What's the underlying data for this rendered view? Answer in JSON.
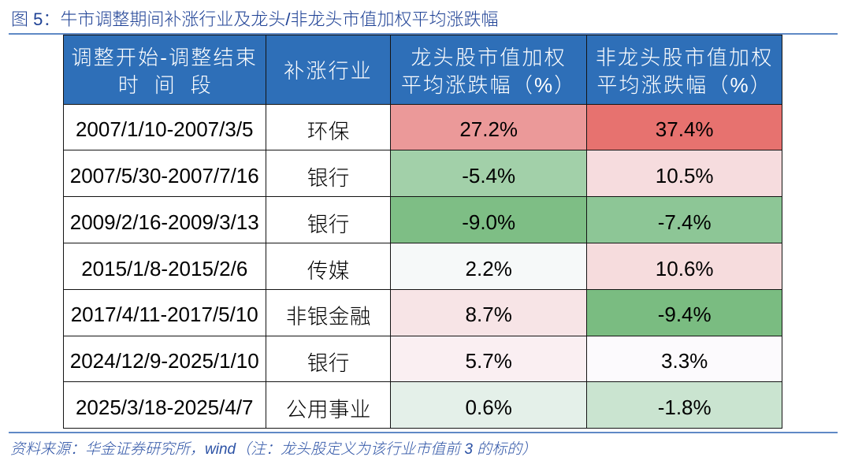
{
  "figure": {
    "label": "图 5：",
    "title": "牛市调整期间补涨行业及龙头/非龙头市值加权平均涨跌幅"
  },
  "table": {
    "columns": [
      {
        "line1": "调整开始-调整结束",
        "line2": "时间段"
      },
      {
        "line1": "补涨行业",
        "line2": ""
      },
      {
        "line1": "龙头股市值加权",
        "line2": "平均涨跌幅（%）"
      },
      {
        "line1": "非龙头股市值加权",
        "line2": "平均涨跌幅（%）"
      }
    ],
    "rows": [
      {
        "period": "2007/1/10-2007/3/5",
        "industry": "环保",
        "leader": "27.2%",
        "non_leader": "37.4%",
        "leader_bg": "#EB9999",
        "non_leader_bg": "#E7726F"
      },
      {
        "period": "2007/5/30-2007/7/16",
        "industry": "银行",
        "leader": "-5.4%",
        "non_leader": "10.5%",
        "leader_bg": "#A2D0A9",
        "non_leader_bg": "#F6DCDE"
      },
      {
        "period": "2009/2/16-2009/3/13",
        "industry": "银行",
        "leader": "-9.0%",
        "non_leader": "-7.4%",
        "leader_bg": "#7EBE85",
        "non_leader_bg": "#8DC696"
      },
      {
        "period": "2015/1/8-2015/2/6",
        "industry": "传媒",
        "leader": "2.2%",
        "non_leader": "10.6%",
        "leader_bg": "#F6F9F9",
        "non_leader_bg": "#F6DCDD"
      },
      {
        "period": "2017/4/11-2017/5/10",
        "industry": "非银金融",
        "leader": "8.7%",
        "non_leader": "-9.4%",
        "leader_bg": "#F7E4E6",
        "non_leader_bg": "#7ABC81"
      },
      {
        "period": "2024/12/9-2025/1/10",
        "industry": "银行",
        "leader": "5.7%",
        "non_leader": "3.3%",
        "leader_bg": "#FAEFF2",
        "non_leader_bg": "#FCFAFD"
      },
      {
        "period": "2025/3/18-2025/4/7",
        "industry": "公用事业",
        "leader": "0.6%",
        "non_leader": "-1.8%",
        "leader_bg": "#E4F0E9",
        "non_leader_bg": "#CAE4D0"
      }
    ]
  },
  "footer": {
    "source_note": "资料来源：华金证券研究所，wind（注：龙头股定义为该行业市值前 3 的标的）"
  },
  "colors": {
    "header_bg": "#2E6FB8",
    "title_text": "#1E4195",
    "footer_text": "#2C52A5",
    "rule_blue": "#5F89C5",
    "table_border": "#141414",
    "value_text": "#000000",
    "gain_max_bg": "#E7726F",
    "loss_min_bg": "#7ABC81"
  },
  "chart_data": {
    "type": "table",
    "title": "牛市调整期间补涨行业及龙头/非龙头市值加权平均涨跌幅",
    "columns": [
      "调整开始-调整结束时间段",
      "补涨行业",
      "龙头股市值加权平均涨跌幅（%）",
      "非龙头股市值加权平均涨跌幅（%）"
    ],
    "rows": [
      [
        "2007/1/10-2007/3/5",
        "环保",
        27.2,
        37.4
      ],
      [
        "2007/5/30-2007/7/16",
        "银行",
        -5.4,
        10.5
      ],
      [
        "2009/2/16-2009/3/13",
        "银行",
        -9.0,
        -7.4
      ],
      [
        "2015/1/8-2015/2/6",
        "传媒",
        2.2,
        10.6
      ],
      [
        "2017/4/11-2017/5/10",
        "非银金融",
        8.7,
        -9.4
      ],
      [
        "2024/12/9-2025/1/10",
        "银行",
        5.7,
        3.3
      ],
      [
        "2025/3/18-2025/4/7",
        "公用事业",
        0.6,
        -1.8
      ]
    ],
    "conditional_formatting": "red-white-green color scale (red = gain, green = loss)",
    "source": "资料来源：华金证券研究所，wind（注：龙头股定义为该行业市值前 3 的标的）"
  }
}
